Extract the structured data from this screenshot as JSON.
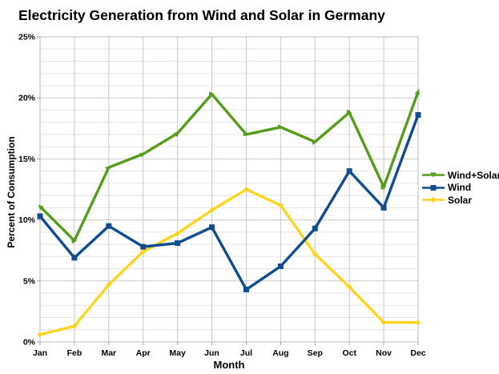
{
  "chart_data": {
    "type": "line",
    "title": "Electricity Generation from Wind and Solar in Germany",
    "categories": [
      "Jan",
      "Feb",
      "Mar",
      "Apr",
      "May",
      "Jun",
      "Jul",
      "Aug",
      "Sep",
      "Oct",
      "Nov",
      "Dec"
    ],
    "series": [
      {
        "name": "Wind+Solar",
        "color": "#579d1c",
        "marker": "arrow",
        "values": [
          11.1,
          8.3,
          14.3,
          15.4,
          17.1,
          20.3,
          17.0,
          17.6,
          16.4,
          18.8,
          12.7,
          20.5
        ]
      },
      {
        "name": "Wind",
        "color": "#0f4d8f",
        "marker": "square",
        "values": [
          10.3,
          6.9,
          9.5,
          7.8,
          8.1,
          9.4,
          4.3,
          6.2,
          9.3,
          14.0,
          11.0,
          18.6
        ]
      },
      {
        "name": "Solar",
        "color": "#ffd320",
        "marker": "diamond",
        "values": [
          0.6,
          1.3,
          4.7,
          7.4,
          8.9,
          10.8,
          12.5,
          11.2,
          7.2,
          4.5,
          1.6,
          1.6
        ]
      }
    ],
    "xlabel": "Month",
    "ylabel": "Percent of Consumption",
    "ylim": [
      0,
      25
    ],
    "y_major_step": 5,
    "y_minor_step": 1,
    "y_tick_suffix": "%",
    "y_tick_labels": [
      "0%",
      "5%",
      "10%",
      "15%",
      "20%",
      "25%"
    ],
    "grid": true,
    "legend_position": "right",
    "grid_minor_color": "#e3e3e3",
    "grid_major_color": "#c9c9c9",
    "frame_color": "#b9b9b9",
    "text_color": "#000000"
  }
}
